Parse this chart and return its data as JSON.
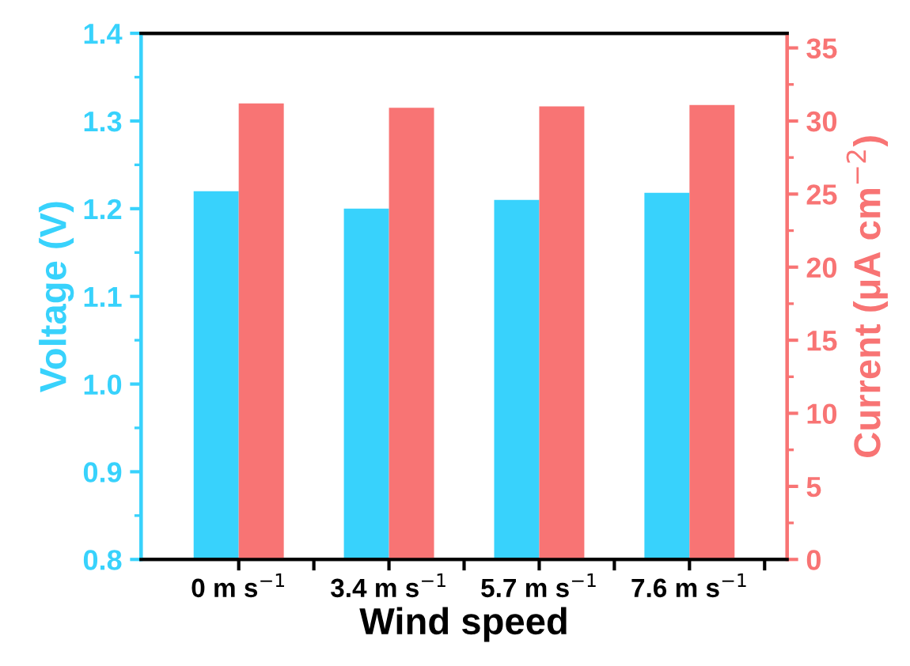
{
  "chart_data": {
    "type": "bar",
    "xlabel": "Wind speed",
    "ylabel": "Voltage (V)",
    "y2label": "Current (μA cm$^{−2}$)",
    "categories": [
      "0 m s$^{−1}$",
      "3.4 m s$^{−1}$",
      "5.7 m s$^{−1}$",
      "7.6 m s$^{−1}$"
    ],
    "series": [
      {
        "color": "#38d2fc",
        "values": [
          1.22,
          1.2,
          1.21,
          1.218
        ]
      },
      {
        "color": "#f87474",
        "axis": "y2",
        "values": [
          31.2,
          30.9,
          31.0,
          31.1
        ]
      }
    ],
    "ylim": [
      0.8,
      1.4
    ],
    "yticks": [
      0.8,
      0.9,
      {
        "value": 1.0,
        "label": "1.0"
      },
      1.1,
      1.2,
      1.3,
      1.4
    ],
    "y2lim": [
      0,
      36
    ],
    "y2ticks": [
      0,
      5,
      10,
      15,
      20,
      25,
      30,
      35
    ],
    "grid": false,
    "legend": false
  }
}
